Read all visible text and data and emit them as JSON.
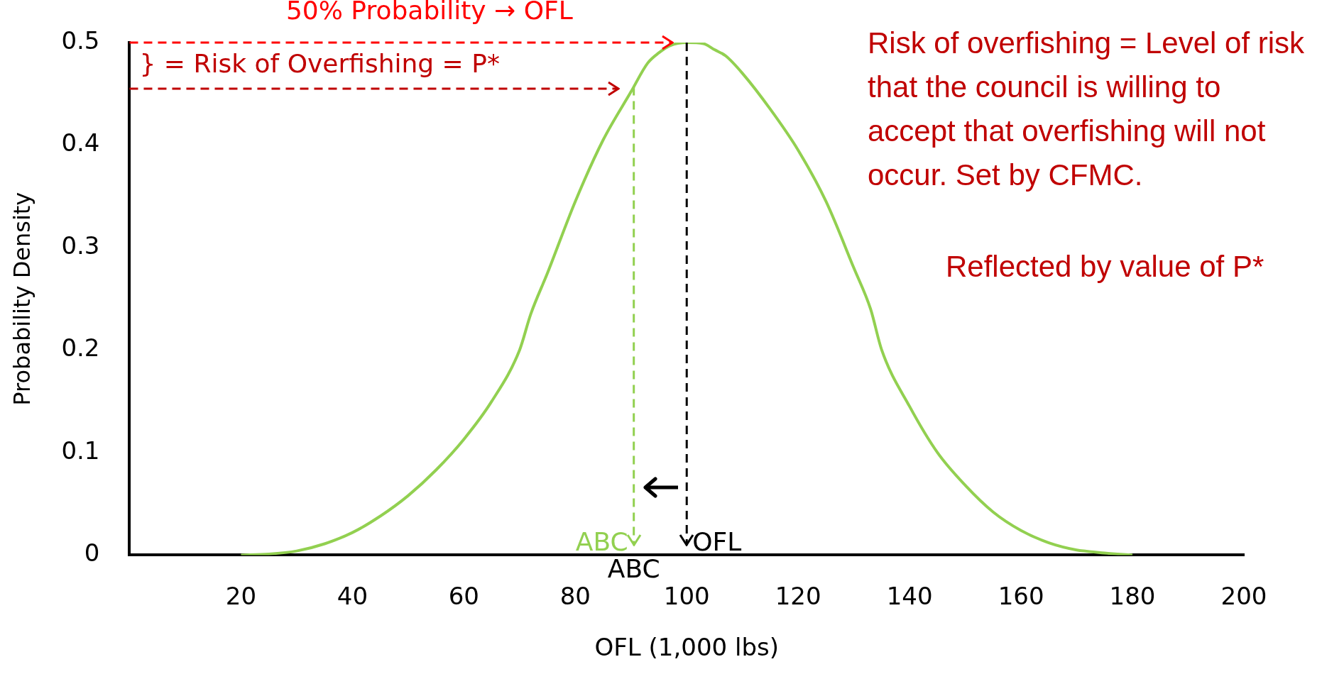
{
  "chart_data": {
    "type": "line",
    "xlabel": "OFL (1,000 lbs)",
    "ylabel": "Probability Density",
    "x": [
      20,
      25,
      30,
      35,
      40,
      45,
      50,
      55,
      60,
      65,
      70,
      72,
      75,
      80,
      85,
      90,
      93,
      95,
      97,
      100,
      103,
      105,
      107,
      110,
      115,
      120,
      125,
      130,
      133,
      135,
      140,
      145,
      150,
      155,
      160,
      165,
      170,
      175,
      180
    ],
    "series": [
      {
        "color": "#92d050",
        "values": [
          0,
          0.001,
          0.004,
          0.011,
          0.022,
          0.038,
          0.058,
          0.083,
          0.113,
          0.15,
          0.2,
          0.235,
          0.275,
          0.345,
          0.405,
          0.452,
          0.48,
          0.49,
          0.497,
          0.5,
          0.499,
          0.493,
          0.487,
          0.47,
          0.435,
          0.395,
          0.345,
          0.28,
          0.24,
          0.2,
          0.145,
          0.1,
          0.068,
          0.042,
          0.024,
          0.012,
          0.005,
          0.002,
          0
        ]
      }
    ],
    "xlim": [
      0,
      200
    ],
    "xticks": [
      20,
      40,
      60,
      80,
      100,
      120,
      140,
      160,
      180,
      200
    ],
    "ylim": [
      0,
      0.5
    ],
    "yticks": [
      0,
      0.1,
      0.2,
      0.3,
      0.4,
      0.5
    ],
    "grid": false,
    "legend": false,
    "marker": "none",
    "line_style": "solid",
    "ref_lines": [
      {
        "axis": "x",
        "value": 100,
        "label": "OFL",
        "color": "#000000",
        "line_style": "dashed"
      },
      {
        "axis": "x",
        "value": 90.5,
        "label": "ABC",
        "color": "#92d050",
        "line_style": "dashed"
      },
      {
        "axis": "y",
        "value": 0.5,
        "label": "50% Probability → OFL",
        "color": "#ff0000",
        "line_style": "dashed"
      },
      {
        "axis": "y",
        "value": 0.455,
        "label": "} = Risk of Overfishing = P*",
        "color": "#c00000",
        "line_style": "dashed"
      }
    ],
    "annotations": [
      "ABC",
      "Risk of overfishing = Level of risk that the council is willing to accept that overfishing will not occur. Set by CFMC.",
      "Reflected by value of P*"
    ]
  }
}
